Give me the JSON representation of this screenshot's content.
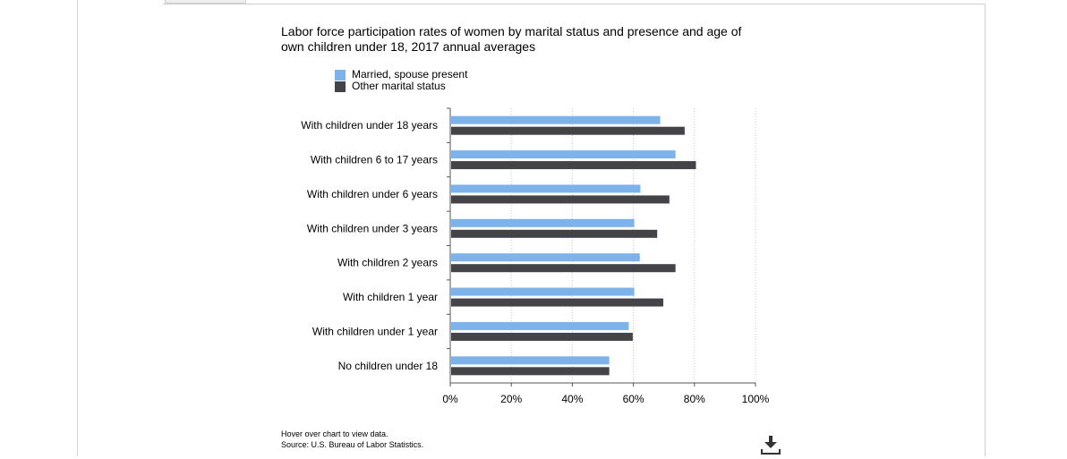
{
  "chart_data": {
    "type": "bar",
    "orientation": "horizontal",
    "title": "Labor force participation rates of women by marital status and presence and age of own children under 18, 2017 annual averages",
    "categories": [
      "With children under 18 years",
      "With children 6 to 17 years",
      "With children under 6 years",
      "With children under 3 years",
      "With children 2 years",
      "With children 1 year",
      "With children under 1 year",
      "No children under 18"
    ],
    "series": [
      {
        "name": "Married, spouse present",
        "color": "#7db3ea",
        "values": [
          68.5,
          73.5,
          62.0,
          60.0,
          61.8,
          60.0,
          58.2,
          51.8
        ]
      },
      {
        "name": "Other marital status",
        "color": "#434348",
        "values": [
          76.5,
          80.2,
          71.5,
          67.5,
          73.5,
          69.5,
          59.5,
          51.8
        ]
      }
    ],
    "xlim": [
      0,
      100
    ],
    "xticks": [
      "0%",
      "20%",
      "40%",
      "60%",
      "80%",
      "100%"
    ],
    "xlabel": "",
    "ylabel": "",
    "grid": true,
    "legend_position": "top-left"
  },
  "footnote": {
    "line1": "Hover over chart to view data.",
    "line2": "Source: U.S. Bureau of Labor Statistics."
  },
  "icons": {
    "download": "download-icon"
  }
}
